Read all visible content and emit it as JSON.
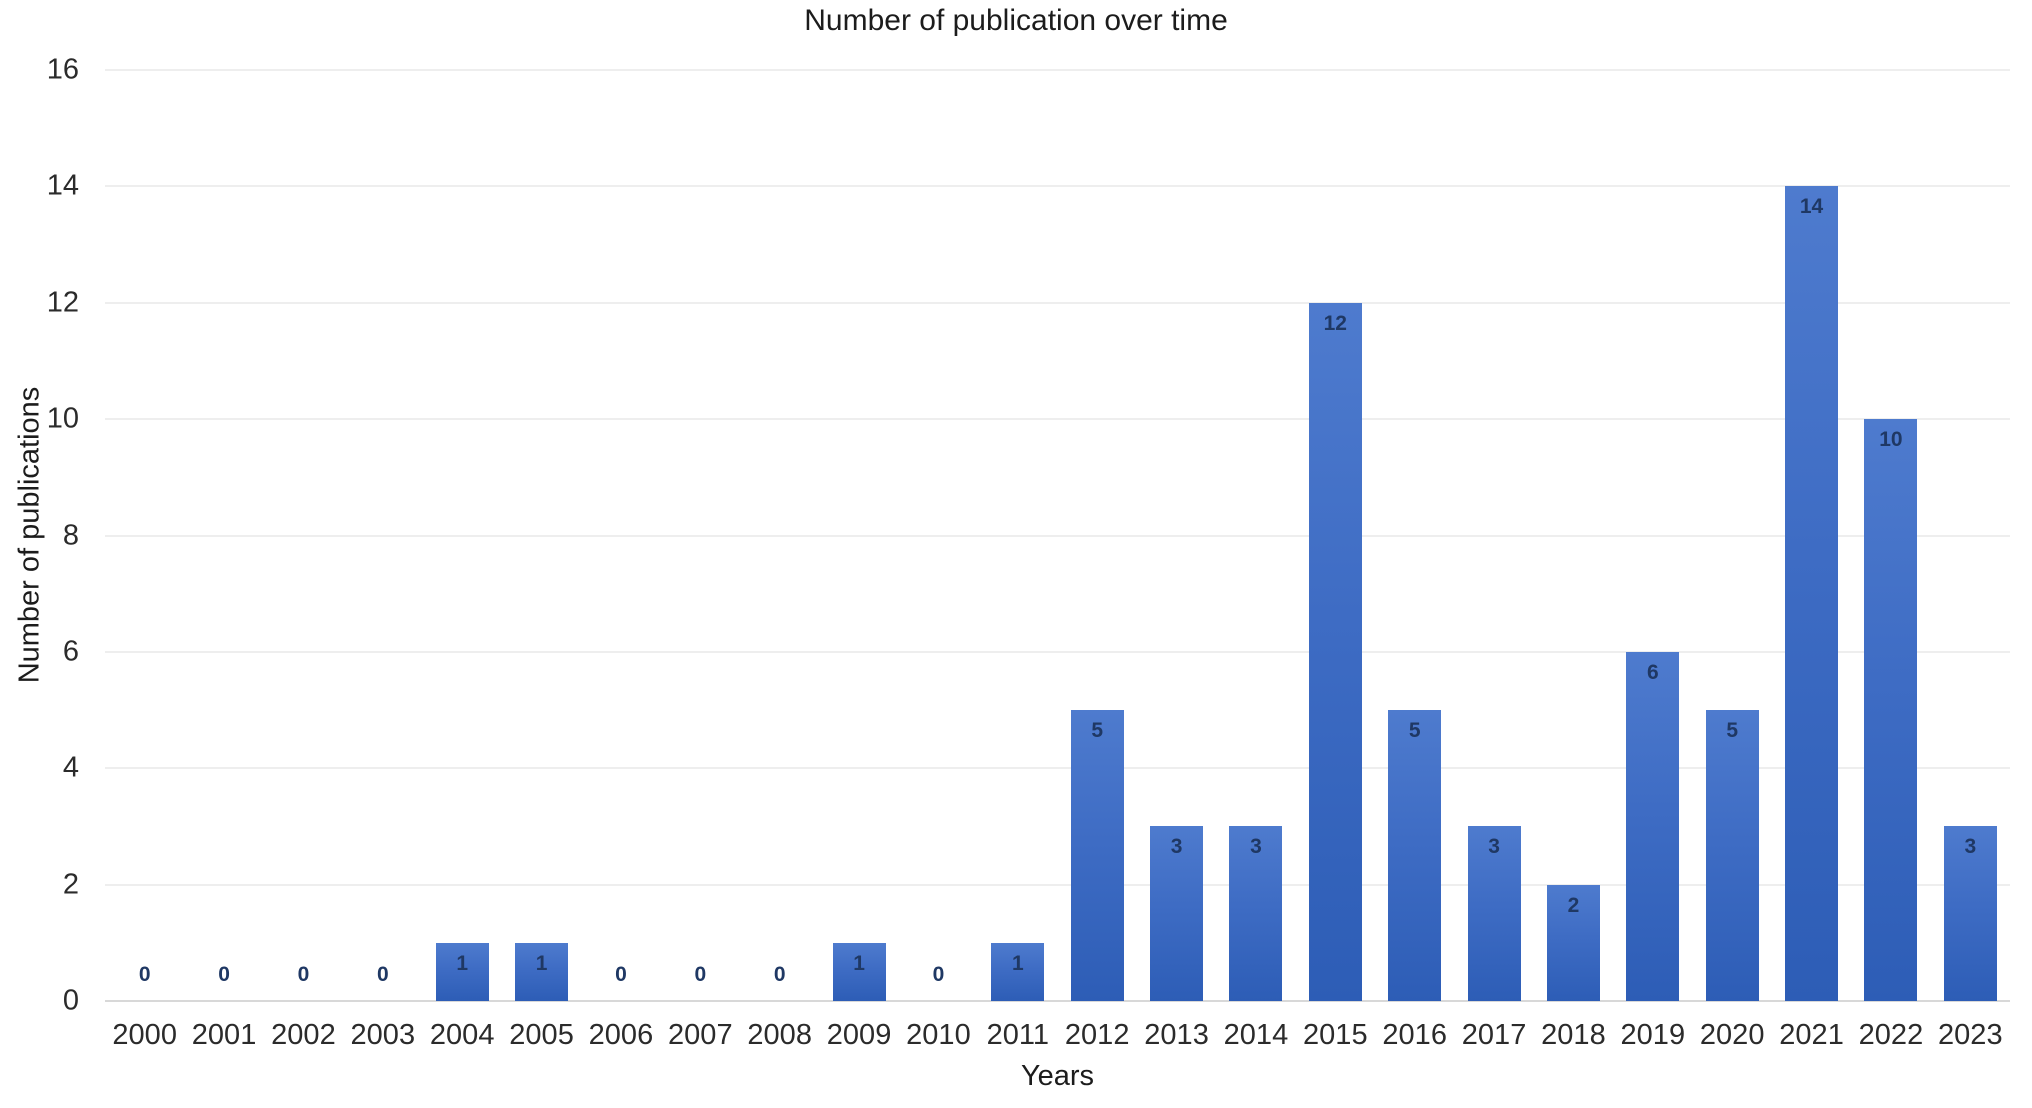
{
  "chart_data": {
    "type": "bar",
    "title": "Number of publication over time",
    "xlabel": "Years",
    "ylabel": "Number of publications",
    "categories": [
      "2000",
      "2001",
      "2002",
      "2003",
      "2004",
      "2005",
      "2006",
      "2007",
      "2008",
      "2009",
      "2010",
      "2011",
      "2012",
      "2013",
      "2014",
      "2015",
      "2016",
      "2017",
      "2018",
      "2019",
      "2020",
      "2021",
      "2022",
      "2023"
    ],
    "values": [
      0,
      0,
      0,
      0,
      1,
      1,
      0,
      0,
      0,
      1,
      0,
      1,
      5,
      3,
      3,
      12,
      5,
      3,
      2,
      6,
      5,
      14,
      10,
      3
    ],
    "ylim": [
      0,
      16
    ],
    "yticks": [
      0,
      2,
      4,
      6,
      8,
      10,
      12,
      14,
      16
    ],
    "grid": "horizontal-on",
    "legend": "none",
    "data_labels": "on",
    "colors": {
      "bar_gradient_top": "#4e7bce",
      "bar_gradient_bottom": "#2d5db6",
      "value_label": "#1f3864",
      "gridline": "#eeeeee",
      "axis_line": "#d8d8d8",
      "text": "#1c1c1c",
      "background": "#ffffff"
    }
  }
}
